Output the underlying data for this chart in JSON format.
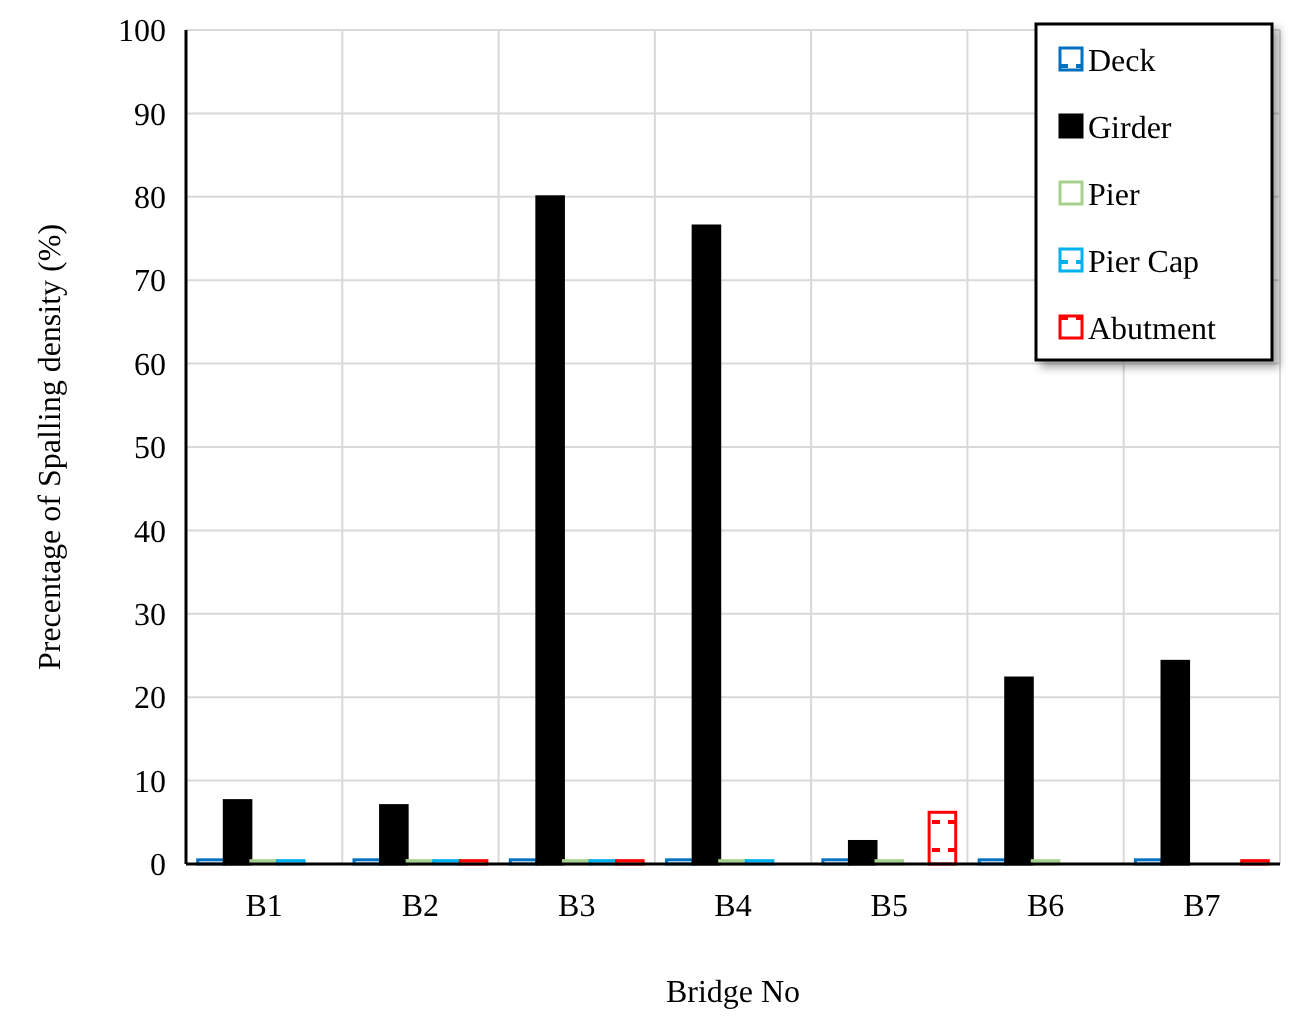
{
  "chart_data": {
    "type": "bar",
    "xlabel": "Bridge No",
    "ylabel": "Precentage of Spalling density (%)",
    "categories": [
      "B1",
      "B2",
      "B3",
      "B4",
      "B5",
      "B6",
      "B7"
    ],
    "ylim": [
      0,
      100
    ],
    "yticks": [
      0,
      10,
      20,
      30,
      40,
      50,
      60,
      70,
      80,
      90,
      100
    ],
    "grid": true,
    "legend": "top right",
    "series": [
      {
        "name": "Deck",
        "color": "#0070c0",
        "values": [
          0.5,
          0.5,
          0.5,
          0.5,
          0.5,
          0.5,
          0.5
        ]
      },
      {
        "name": "Girder",
        "color": "#000000",
        "values": [
          7.6,
          7.0,
          80,
          76.5,
          2.7,
          22.3,
          24.3
        ]
      },
      {
        "name": "Pier",
        "color": "#a9d18e",
        "values": [
          0.4,
          0.4,
          0.4,
          0.4,
          0.4,
          0.4,
          null
        ]
      },
      {
        "name": "Pier Cap",
        "color": "#00b0f0",
        "values": [
          0.4,
          0.4,
          0.4,
          0.4,
          null,
          null,
          null
        ]
      },
      {
        "name": "Abutment",
        "color": "#ff0000",
        "values": [
          null,
          0.4,
          0.4,
          null,
          6.2,
          null,
          0.4
        ]
      }
    ]
  }
}
